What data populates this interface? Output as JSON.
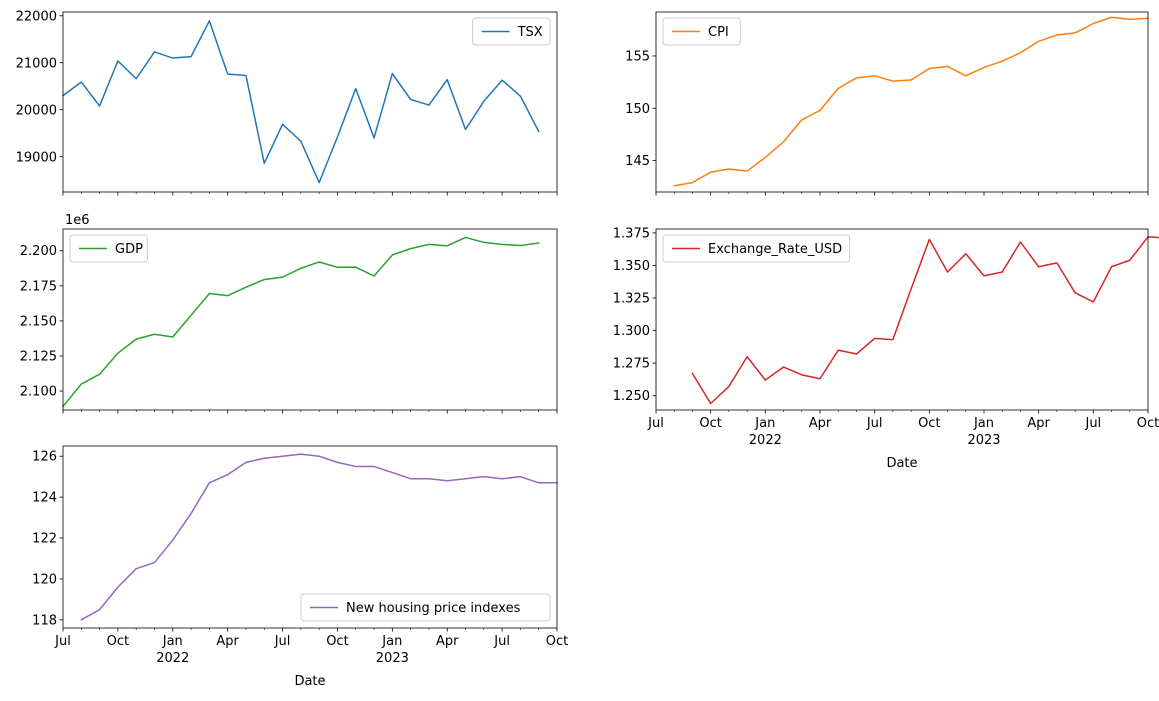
{
  "chart_data": [
    {
      "type": "line",
      "xlabel": "",
      "ylabel": "",
      "x_axis": {
        "start": "2021-07",
        "end": "2023-10",
        "tick_labels_shown": false
      },
      "yticks": [
        19000,
        20000,
        21000,
        22000
      ],
      "ylim": [
        18250,
        22080
      ],
      "legend_position": "upper-right",
      "series": [
        {
          "name": "TSX",
          "color": "#1f77b4",
          "x": [
            "2021-07",
            "2021-08",
            "2021-09",
            "2021-10",
            "2021-11",
            "2021-12",
            "2022-01",
            "2022-02",
            "2022-03",
            "2022-04",
            "2022-05",
            "2022-06",
            "2022-07",
            "2022-08",
            "2022-09",
            "2022-10",
            "2022-11",
            "2022-12",
            "2023-01",
            "2023-02",
            "2023-03",
            "2023-04",
            "2023-05",
            "2023-06",
            "2023-07",
            "2023-08",
            "2023-09"
          ],
          "values": [
            20300,
            20590,
            20080,
            21040,
            20660,
            21230,
            21100,
            21130,
            21890,
            20760,
            20730,
            18860,
            19690,
            19330,
            18450,
            19420,
            20450,
            19400,
            20770,
            20220,
            20100,
            20640,
            19580,
            20180,
            20630,
            20290,
            19540
          ]
        }
      ]
    },
    {
      "type": "line",
      "xlabel": "",
      "ylabel": "",
      "x_axis": {
        "start": "2021-07",
        "end": "2023-10",
        "tick_labels_shown": false
      },
      "yticks": [
        145,
        150,
        155
      ],
      "ylim": [
        142.0,
        159.2
      ],
      "legend_position": "upper-left",
      "series": [
        {
          "name": "CPI",
          "color": "#ff7f0e",
          "x": [
            "2021-08",
            "2021-09",
            "2021-10",
            "2021-11",
            "2021-12",
            "2022-01",
            "2022-02",
            "2022-03",
            "2022-04",
            "2022-05",
            "2022-06",
            "2022-07",
            "2022-08",
            "2022-09",
            "2022-10",
            "2022-11",
            "2022-12",
            "2023-01",
            "2023-02",
            "2023-03",
            "2023-04",
            "2023-05",
            "2023-06",
            "2023-07",
            "2023-08",
            "2023-09",
            "2023-10"
          ],
          "values": [
            142.6,
            142.9,
            143.9,
            144.2,
            144.0,
            145.3,
            146.8,
            148.9,
            149.8,
            151.9,
            152.9,
            153.1,
            152.6,
            152.7,
            153.8,
            154.0,
            153.1,
            153.9,
            154.5,
            155.3,
            156.4,
            157.0,
            157.2,
            158.1,
            158.7,
            158.5,
            158.6
          ]
        }
      ]
    },
    {
      "type": "line",
      "xlabel": "",
      "ylabel": "",
      "offset_text": "1e6",
      "x_axis": {
        "start": "2021-07",
        "end": "2023-10",
        "tick_labels_shown": false
      },
      "yticks": [
        2.1,
        2.125,
        2.15,
        2.175,
        2.2
      ],
      "ytick_labels": [
        "2.100",
        "2.125",
        "2.150",
        "2.175",
        "2.200"
      ],
      "ylim": [
        2.0865,
        2.2155
      ],
      "legend_position": "upper-left",
      "series": [
        {
          "name": "GDP",
          "color": "#2ca02c",
          "x": [
            "2021-07",
            "2021-08",
            "2021-09",
            "2021-10",
            "2021-11",
            "2021-12",
            "2022-01",
            "2022-02",
            "2022-03",
            "2022-04",
            "2022-05",
            "2022-06",
            "2022-07",
            "2022-08",
            "2022-09",
            "2022-10",
            "2022-11",
            "2022-12",
            "2023-01",
            "2023-02",
            "2023-03",
            "2023-04",
            "2023-05",
            "2023-06",
            "2023-07",
            "2023-08",
            "2023-09"
          ],
          "values": [
            2.089,
            2.105,
            2.112,
            2.127,
            2.137,
            2.1405,
            2.1385,
            2.154,
            2.1695,
            2.168,
            2.174,
            2.1795,
            2.1812,
            2.1875,
            2.192,
            2.1882,
            2.1883,
            2.182,
            2.197,
            2.2015,
            2.2045,
            2.2035,
            2.2095,
            2.206,
            2.2045,
            2.2037,
            2.2055
          ]
        }
      ]
    },
    {
      "type": "line",
      "xlabel": "Date",
      "ylabel": "",
      "x_axis": {
        "start": "2021-07",
        "end": "2023-10",
        "major_ticks": [
          "Jul",
          "Oct",
          "Jan\n2022",
          "Apr",
          "Jul",
          "Oct",
          "Jan\n2023",
          "Apr",
          "Jul",
          "Oct"
        ]
      },
      "yticks": [
        1.25,
        1.275,
        1.3,
        1.325,
        1.35,
        1.375
      ],
      "ytick_labels": [
        "1.250",
        "1.275",
        "1.300",
        "1.325",
        "1.350",
        "1.375"
      ],
      "ylim": [
        1.239,
        1.378
      ],
      "legend_position": "upper-left",
      "series": [
        {
          "name": "Exchange_Rate_USD",
          "color": "#d62728",
          "x": [
            "2021-09",
            "2021-10",
            "2021-11",
            "2021-12",
            "2022-01",
            "2022-02",
            "2022-03",
            "2022-04",
            "2022-05",
            "2022-06",
            "2022-07",
            "2022-08",
            "2022-09",
            "2022-10",
            "2022-11",
            "2022-12",
            "2023-01",
            "2023-02",
            "2023-03",
            "2023-04",
            "2023-05",
            "2023-06",
            "2023-07",
            "2023-08",
            "2023-09",
            "2023-10",
            "2023-11"
          ],
          "values": [
            1.267,
            1.244,
            1.257,
            1.28,
            1.262,
            1.272,
            1.266,
            1.263,
            1.285,
            1.282,
            1.294,
            1.293,
            1.332,
            1.37,
            1.345,
            1.359,
            1.342,
            1.345,
            1.368,
            1.349,
            1.352,
            1.329,
            1.322,
            1.349,
            1.354,
            1.372,
            1.371
          ]
        }
      ]
    },
    {
      "type": "line",
      "xlabel": "Date",
      "ylabel": "",
      "x_axis": {
        "start": "2021-07",
        "end": "2023-10",
        "major_ticks": [
          "Jul",
          "Oct",
          "Jan\n2022",
          "Apr",
          "Jul",
          "Oct",
          "Jan\n2023",
          "Apr",
          "Jul",
          "Oct"
        ]
      },
      "yticks": [
        118,
        120,
        122,
        124,
        126
      ],
      "ylim": [
        117.6,
        126.5
      ],
      "legend_position": "lower-right",
      "series": [
        {
          "name": "New housing price indexes",
          "color": "#9467bd",
          "x": [
            "2021-08",
            "2021-09",
            "2021-10",
            "2021-11",
            "2021-12",
            "2022-01",
            "2022-02",
            "2022-03",
            "2022-04",
            "2022-05",
            "2022-06",
            "2022-07",
            "2022-08",
            "2022-09",
            "2022-10",
            "2022-11",
            "2022-12",
            "2023-01",
            "2023-02",
            "2023-03",
            "2023-04",
            "2023-05",
            "2023-06",
            "2023-07",
            "2023-08",
            "2023-09",
            "2023-10"
          ],
          "values": [
            118.0,
            118.5,
            119.6,
            120.5,
            120.8,
            121.9,
            123.2,
            124.7,
            125.1,
            125.7,
            125.9,
            126.0,
            126.1,
            126.0,
            125.7,
            125.5,
            125.5,
            125.2,
            124.9,
            124.9,
            124.8,
            124.9,
            125.0,
            124.9,
            125.0,
            124.7,
            124.7
          ]
        }
      ]
    }
  ]
}
